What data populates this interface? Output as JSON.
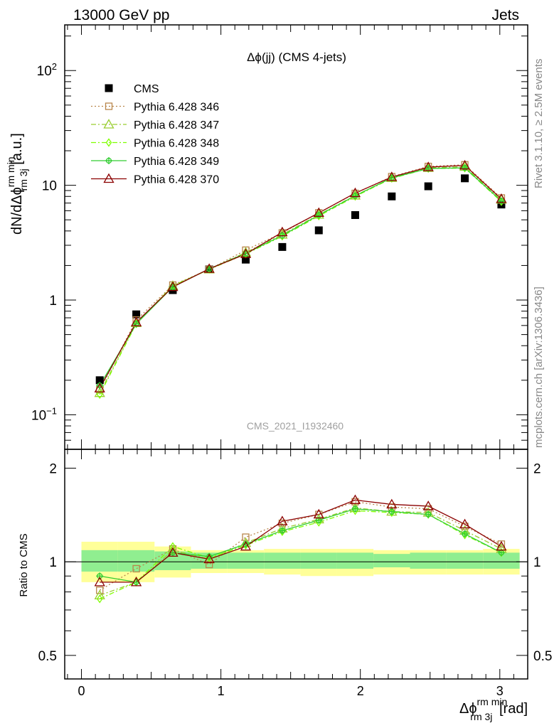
{
  "header": {
    "left": "13000 GeV pp",
    "right": "Jets"
  },
  "side": {
    "rivet": "Rivet 3.1.10, ≥ 2.5M events",
    "mcplots": "mcplots.cern.ch [arXiv:1306.3436]"
  },
  "chart_data": [
    {
      "type": "scatter",
      "title": "Δϕ(jj) (CMS 4-jets)",
      "watermark": "CMS_2021_I1932460",
      "ylabel": "dN/dΔϕ^{rm min}_{rm 3j} [a.u.]",
      "yscale": "log",
      "xlim": [
        -0.12,
        3.2
      ],
      "ylim": [
        0.05,
        250
      ],
      "y_tick_labels": [
        "10^-1",
        "1",
        "10",
        "10^2"
      ],
      "legend_position": "top-left",
      "x": [
        0.131,
        0.393,
        0.655,
        0.916,
        1.178,
        1.44,
        1.702,
        1.963,
        2.225,
        2.487,
        2.749,
        3.011
      ],
      "series": [
        {
          "name": "CMS",
          "color": "#000000",
          "marker": "square-filled",
          "values": [
            0.2,
            0.75,
            1.22,
            1.85,
            2.25,
            2.9,
            4.05,
            5.5,
            8.0,
            9.8,
            11.5,
            6.8
          ]
        },
        {
          "name": "Pythia 6.428 346",
          "color": "#b8864b",
          "marker": "square-open",
          "dash": "dotted",
          "values": [
            0.165,
            0.67,
            1.35,
            1.85,
            2.72,
            3.85,
            5.75,
            8.5,
            11.9,
            14.6,
            15.1,
            7.75
          ]
        },
        {
          "name": "Pythia 6.428 347",
          "color": "#9acd32",
          "marker": "triangle-open",
          "dash": "dashdot",
          "values": [
            0.155,
            0.63,
            1.33,
            1.85,
            2.6,
            3.72,
            5.55,
            8.15,
            11.6,
            14.2,
            14.5,
            7.5
          ]
        },
        {
          "name": "Pythia 6.428 348",
          "color": "#7fff00",
          "marker": "diamond-open",
          "dash": "dashdot",
          "values": [
            0.15,
            0.62,
            1.33,
            1.85,
            2.52,
            3.6,
            5.4,
            8.0,
            11.5,
            14.0,
            14.1,
            7.2
          ]
        },
        {
          "name": "Pythia 6.428 349",
          "color": "#32cd32",
          "marker": "cross-circle",
          "dash": "solid",
          "values": [
            0.18,
            0.62,
            1.3,
            1.87,
            2.55,
            3.65,
            5.5,
            8.1,
            11.6,
            14.0,
            14.2,
            7.3
          ]
        },
        {
          "name": "Pythia 6.428 370",
          "color": "#8b0000",
          "marker": "triangle-open",
          "dash": "solid",
          "values": [
            0.17,
            0.64,
            1.3,
            1.87,
            2.52,
            3.9,
            5.75,
            8.55,
            11.8,
            14.4,
            14.9,
            7.6
          ]
        }
      ]
    },
    {
      "type": "line",
      "ylabel": "Ratio to CMS",
      "xlabel": "Δϕ^{rm min}_{rm 3j} [rad]",
      "yscale": "log",
      "xlim": [
        -0.12,
        3.2
      ],
      "ylim": [
        0.42,
        2.3
      ],
      "x_tick_labels": [
        "0",
        "1",
        "2",
        "3"
      ],
      "y_tick_labels": [
        "0.5",
        "1",
        "2"
      ],
      "reference_line": 1,
      "uncertainty_bands": {
        "bin_edges": [
          0.0,
          0.262,
          0.524,
          0.785,
          1.047,
          1.309,
          1.571,
          1.833,
          2.094,
          2.356,
          2.618,
          2.88,
          3.142
        ],
        "inner_green": [
          [
            0.93,
            1.09
          ],
          [
            0.93,
            1.09
          ],
          [
            0.94,
            1.08
          ],
          [
            0.95,
            1.07
          ],
          [
            0.95,
            1.07
          ],
          [
            0.95,
            1.07
          ],
          [
            0.95,
            1.07
          ],
          [
            0.95,
            1.07
          ],
          [
            0.96,
            1.06
          ],
          [
            0.95,
            1.07
          ],
          [
            0.95,
            1.07
          ],
          [
            0.95,
            1.07
          ]
        ],
        "outer_yellow": [
          [
            0.86,
            1.16
          ],
          [
            0.86,
            1.16
          ],
          [
            0.89,
            1.12
          ],
          [
            0.92,
            1.09
          ],
          [
            0.92,
            1.09
          ],
          [
            0.91,
            1.1
          ],
          [
            0.9,
            1.1
          ],
          [
            0.9,
            1.1
          ],
          [
            0.91,
            1.09
          ],
          [
            0.91,
            1.09
          ],
          [
            0.91,
            1.09
          ],
          [
            0.91,
            1.1
          ]
        ]
      },
      "x": [
        0.131,
        0.393,
        0.655,
        0.916,
        1.178,
        1.44,
        1.702,
        1.963,
        2.225,
        2.487,
        2.749,
        3.011
      ],
      "series": [
        {
          "name": "Pythia 6.428 346",
          "color": "#b8864b",
          "marker": "square-open",
          "dash": "dotted",
          "values": [
            0.81,
            0.95,
            1.1,
            0.98,
            1.2,
            1.33,
            1.42,
            1.56,
            1.5,
            1.48,
            1.3,
            1.14
          ]
        },
        {
          "name": "Pythia 6.428 347",
          "color": "#9acd32",
          "marker": "triangle-open",
          "dash": "dashdot",
          "values": [
            0.78,
            0.86,
            1.09,
            1.02,
            1.15,
            1.28,
            1.37,
            1.49,
            1.45,
            1.44,
            1.26,
            1.1
          ]
        },
        {
          "name": "Pythia 6.428 348",
          "color": "#7fff00",
          "marker": "diamond-open",
          "dash": "dashdot",
          "values": [
            0.76,
            0.86,
            1.12,
            1.03,
            1.13,
            1.25,
            1.34,
            1.46,
            1.44,
            1.42,
            1.22,
            1.07
          ]
        },
        {
          "name": "Pythia 6.428 349",
          "color": "#32cd32",
          "marker": "cross-circle",
          "dash": "solid",
          "values": [
            0.9,
            0.86,
            1.07,
            1.04,
            1.14,
            1.26,
            1.36,
            1.48,
            1.45,
            1.42,
            1.23,
            1.07
          ]
        },
        {
          "name": "Pythia 6.428 370",
          "color": "#8b0000",
          "marker": "triangle-open",
          "dash": "solid",
          "values": [
            0.86,
            0.86,
            1.07,
            1.02,
            1.12,
            1.35,
            1.42,
            1.58,
            1.53,
            1.51,
            1.32,
            1.12
          ]
        }
      ]
    }
  ]
}
